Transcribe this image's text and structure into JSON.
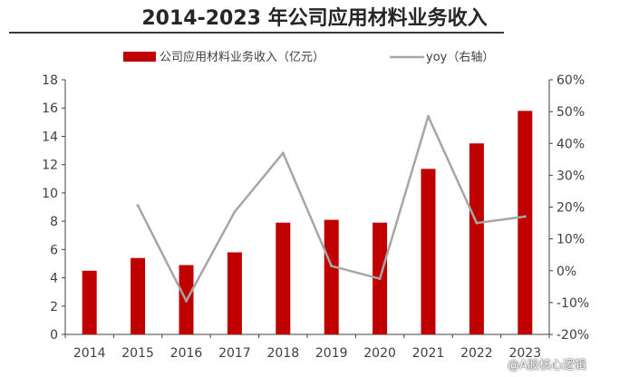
{
  "title": "2014-2023 年公司应用材料业务收入",
  "watermark": "@A股核心逻辑",
  "colors": {
    "bar": "#c00000",
    "line": "#a6a6a6",
    "axis": "#404040",
    "text": "#404040"
  },
  "chart_data": {
    "type": "bar",
    "title": "2014-2023 年公司应用材料业务收入",
    "categories": [
      "2014",
      "2015",
      "2016",
      "2017",
      "2018",
      "2019",
      "2020",
      "2021",
      "2022",
      "2023"
    ],
    "series": [
      {
        "name": "公司应用材料业务收入（亿元）",
        "type": "bar",
        "axis": "left",
        "values": [
          4.5,
          5.4,
          4.9,
          5.8,
          7.9,
          8.1,
          7.9,
          11.7,
          13.5,
          15.8
        ]
      },
      {
        "name": "yoy（右轴）",
        "type": "line",
        "axis": "right",
        "values": [
          null,
          20.5,
          -9.5,
          18.5,
          37.0,
          1.5,
          -2.5,
          48.5,
          15.0,
          17.0
        ]
      }
    ],
    "y_left": {
      "min": 0,
      "max": 18,
      "ticks": [
        "0",
        "2",
        "4",
        "6",
        "8",
        "10",
        "12",
        "14",
        "16",
        "18"
      ]
    },
    "y_right": {
      "min": -20,
      "max": 60,
      "ticks": [
        "-20%",
        "-10%",
        "0%",
        "10%",
        "20%",
        "30%",
        "40%",
        "50%",
        "60%"
      ]
    },
    "legend_position": "top",
    "grid": false
  }
}
